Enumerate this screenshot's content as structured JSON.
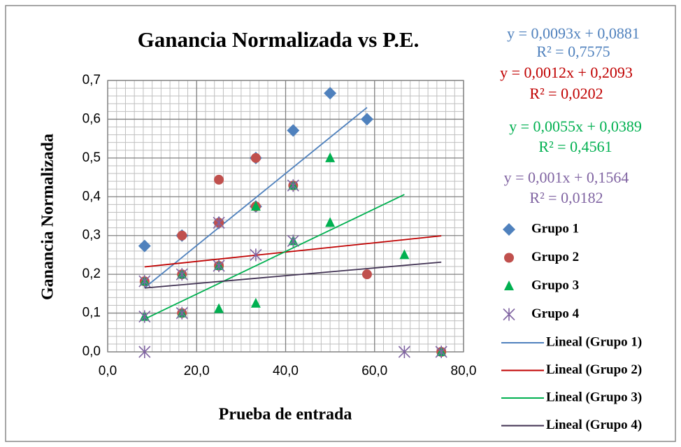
{
  "chart_data": {
    "type": "scatter",
    "title": "Ganancia Normalizada vs P.E.",
    "x_label": "Prueba de entrada",
    "y_label": "Ganancia Normalizada",
    "xlim": [
      0,
      80
    ],
    "ylim": [
      0,
      0.7
    ],
    "xticks": [
      {
        "value": 0,
        "label": "0,0"
      },
      {
        "value": 20,
        "label": "20,0"
      },
      {
        "value": 40,
        "label": "40,0"
      },
      {
        "value": 60,
        "label": "60,0"
      },
      {
        "value": 80,
        "label": "80,0"
      }
    ],
    "yticks": [
      {
        "value": 0,
        "label": "0,0"
      },
      {
        "value": 0.1,
        "label": "0,1"
      },
      {
        "value": 0.2,
        "label": "0,2"
      },
      {
        "value": 0.3,
        "label": "0,3"
      },
      {
        "value": 0.4,
        "label": "0,4"
      },
      {
        "value": 0.5,
        "label": "0,5"
      },
      {
        "value": 0.6,
        "label": "0,6"
      },
      {
        "value": 0.7,
        "label": "0,7"
      }
    ],
    "grid": true,
    "minor_grid": true,
    "legend": "right",
    "series": [
      {
        "name": "Grupo 1",
        "color": "#4f81bd",
        "marker": "diamond",
        "x": [
          8.3,
          16.7,
          25,
          33.3,
          33.3,
          41.7,
          50,
          58.3
        ],
        "values": [
          0.273,
          0.3,
          0.333,
          0.375,
          0.5,
          0.571,
          0.667,
          0.6
        ],
        "trendline": {
          "name": "Lineal (Grupo 1)",
          "color": "#4f81bd",
          "equation": "y = 0,0093x + 0,0881",
          "r2": "R² = 0,7575",
          "slope": 0.0093,
          "intercept": 0.0881,
          "x": [
            8.3,
            58.3
          ]
        }
      },
      {
        "name": "Grupo 2",
        "color": "#c0504d",
        "marker": "circle",
        "x": [
          8.3,
          16.7,
          16.7,
          16.7,
          25,
          25,
          25,
          33.3,
          33.3,
          41.7,
          58.3,
          75
        ],
        "values": [
          0.182,
          0.3,
          0.1,
          0.2,
          0.444,
          0.222,
          0.333,
          0.5,
          0.375,
          0.429,
          0.2,
          0
        ],
        "trendline": {
          "name": "Lineal (Grupo 2)",
          "color": "#c00000",
          "equation": "y = 0,0012x + 0,2093",
          "r2": "R² = 0,0202",
          "slope": 0.0012,
          "intercept": 0.2093,
          "x": [
            8.3,
            75
          ]
        }
      },
      {
        "name": "Grupo 3",
        "color": "#00b050",
        "marker": "triangle",
        "x": [
          8.3,
          8.3,
          16.7,
          16.7,
          25,
          25,
          33.3,
          33.3,
          41.7,
          41.7,
          50,
          50,
          66.7,
          75
        ],
        "values": [
          0.091,
          0.182,
          0.2,
          0.1,
          0.111,
          0.222,
          0.125,
          0.375,
          0.286,
          0.429,
          0.333,
          0.5,
          0.25,
          0
        ],
        "trendline": {
          "name": "Lineal (Grupo 3)",
          "color": "#00b050",
          "equation": "y = 0,0055x + 0,0389",
          "r2": "R² = 0,4561",
          "slope": 0.0055,
          "intercept": 0.0389,
          "x": [
            8.3,
            66.7
          ]
        }
      },
      {
        "name": "Grupo 4",
        "color": "#8064a2",
        "marker": "asterisk",
        "x": [
          8.3,
          8.3,
          8.3,
          16.7,
          16.7,
          25,
          25,
          33.3,
          41.7,
          41.7,
          66.7,
          75
        ],
        "values": [
          0,
          0.091,
          0.182,
          0.1,
          0.2,
          0.222,
          0.333,
          0.25,
          0.286,
          0.429,
          0,
          0
        ],
        "trendline": {
          "name": "Lineal (Grupo 4)",
          "color": "#403152",
          "equation": "y = 0,001x + 0,1564",
          "r2": "R² = 0,0182",
          "slope": 0.001,
          "intercept": 0.1564,
          "x": [
            8.3,
            75
          ]
        }
      }
    ]
  }
}
